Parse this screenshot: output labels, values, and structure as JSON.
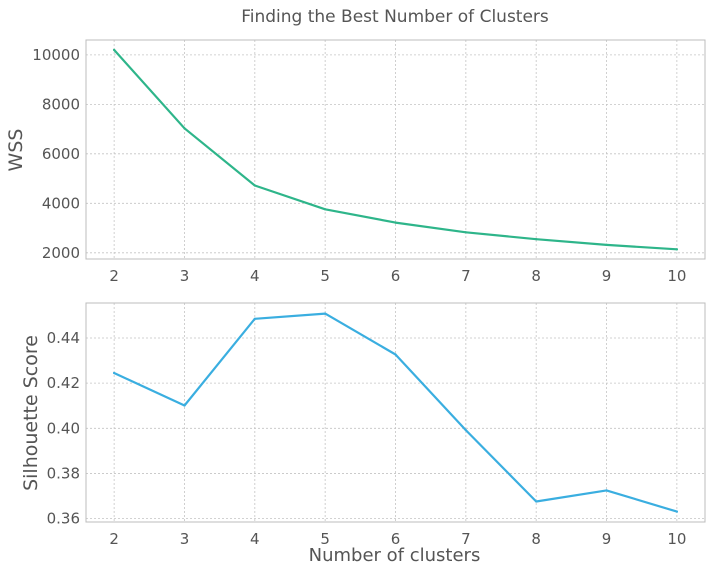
{
  "chart_data": [
    {
      "type": "line",
      "title": "Finding the Best Number of Clusters",
      "xlabel": "",
      "ylabel": "WSS",
      "x": [
        2,
        3,
        4,
        5,
        6,
        7,
        8,
        9,
        10
      ],
      "xlim": [
        1.6,
        10.4
      ],
      "ylim": [
        1750,
        10600
      ],
      "xticks": [
        "2",
        "3",
        "4",
        "5",
        "6",
        "7",
        "8",
        "9",
        "10"
      ],
      "yticks": [
        2000,
        4000,
        6000,
        8000,
        10000
      ],
      "grid": true,
      "series": [
        {
          "color": "#2eb58a",
          "values": [
            10200,
            7030,
            4720,
            3760,
            3220,
            2830,
            2550,
            2320,
            2140
          ]
        }
      ]
    },
    {
      "type": "line",
      "xlabel": "Number of clusters",
      "ylabel": "Silhouette Score",
      "x": [
        2,
        3,
        4,
        5,
        6,
        7,
        8,
        9,
        10
      ],
      "xlim": [
        1.6,
        10.4
      ],
      "ylim": [
        0.3585,
        0.4555
      ],
      "xticks": [
        "2",
        "3",
        "4",
        "5",
        "6",
        "7",
        "8",
        "9",
        "10"
      ],
      "yticks": [
        "0.36",
        "0.38",
        "0.40",
        "0.42",
        "0.44"
      ],
      "grid": true,
      "series": [
        {
          "color": "#3aaee0",
          "values": [
            0.4245,
            0.4101,
            0.4485,
            0.4508,
            0.4327,
            0.3992,
            0.3676,
            0.3725,
            0.3631
          ]
        }
      ]
    }
  ]
}
